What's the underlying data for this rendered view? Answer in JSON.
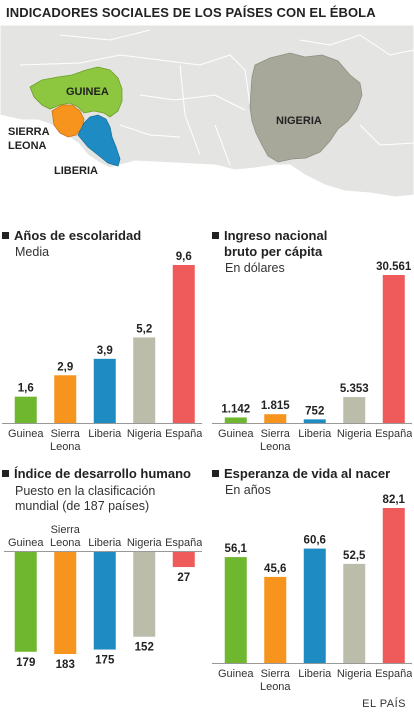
{
  "title": "INDICADORES SOCIALES DE LOS PAÍSES CON EL ÉBOLA",
  "map": {
    "labels": {
      "guinea": "GUINEA",
      "sierra_leona": "SIERRA\nLEONA",
      "liberia": "LIBERIA",
      "nigeria": "NIGERIA"
    },
    "colors": {
      "guinea": "#8dc63f",
      "sierra_leona": "#f7941d",
      "liberia": "#1e8bc3",
      "nigeria": "#a8a89a",
      "land": "#e4e4e2",
      "sea": "#ffffff"
    }
  },
  "colors": {
    "Guinea": "#6fb72f",
    "Sierra Leona": "#f7941d",
    "Liberia": "#1e8bc3",
    "Nigeria": "#bcbcab",
    "España": "#ef5a5a"
  },
  "source": "EL PAÍS",
  "chart_data": [
    {
      "type": "bar",
      "title": "Años de escolaridad",
      "subtitle": "Media",
      "categories": [
        "Guinea",
        "Sierra\nLeona",
        "Liberia",
        "Nigeria",
        "España"
      ],
      "values": [
        1.6,
        2.9,
        3.9,
        5.2,
        9.6
      ],
      "value_labels": [
        "1,6",
        "2,9",
        "3,9",
        "5,2",
        "9,6"
      ],
      "ylim": [
        0,
        9.6
      ]
    },
    {
      "type": "bar",
      "title": "Ingreso nacional\nbruto per cápita",
      "subtitle": "En dólares",
      "categories": [
        "Guinea",
        "Sierra\nLeona",
        "Liberia",
        "Nigeria",
        "España"
      ],
      "values": [
        1142,
        1815,
        752,
        5353,
        30561
      ],
      "value_labels": [
        "1.142",
        "1.815",
        "752",
        "5.353",
        "30.561"
      ],
      "ylim": [
        0,
        30561
      ]
    },
    {
      "type": "bar",
      "title": "Índice de desarrollo humano",
      "subtitle": "Puesto en la clasificación\nmundial (de 187 países)",
      "categories": [
        "Guinea",
        "Sierra\nLeona",
        "Liberia",
        "Nigeria",
        "España"
      ],
      "values": [
        179,
        183,
        175,
        152,
        27
      ],
      "value_labels": [
        "179",
        "183",
        "175",
        "152",
        "27"
      ],
      "ylim": [
        0,
        183
      ],
      "orientation": "downward"
    },
    {
      "type": "bar",
      "title": "Esperanza de vida al nacer",
      "subtitle": "En años",
      "categories": [
        "Guinea",
        "Sierra\nLeona",
        "Liberia",
        "Nigeria",
        "España"
      ],
      "values": [
        56.1,
        45.6,
        60.6,
        52.5,
        82.1
      ],
      "value_labels": [
        "56,1",
        "45,6",
        "60,6",
        "52,5",
        "82,1"
      ],
      "ylim": [
        0,
        82.1
      ]
    }
  ]
}
